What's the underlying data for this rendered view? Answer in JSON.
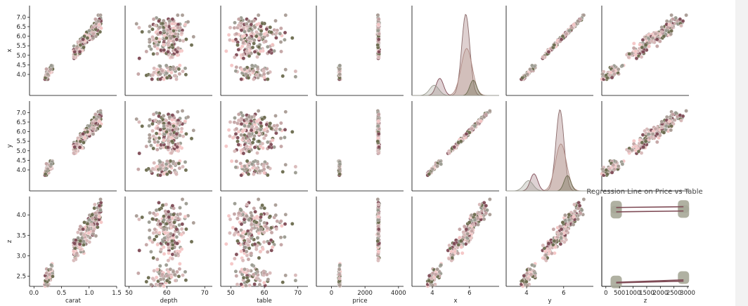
{
  "chart_data": {
    "type": "scatter",
    "kind": "pairplot",
    "row_variables": [
      "x",
      "y",
      "z"
    ],
    "col_variables": [
      "carat",
      "depth",
      "table",
      "price",
      "x",
      "y",
      "z"
    ],
    "axes": {
      "carat": {
        "range": [
          -0.08,
          1.5
        ],
        "ticks": [
          0.0,
          0.5,
          1.0,
          1.5
        ],
        "tick_labels": [
          "0.0",
          "0.5",
          "1.0",
          "1.5"
        ]
      },
      "depth": {
        "range": [
          49,
          72
        ],
        "ticks": [
          50,
          60,
          70
        ],
        "tick_labels": [
          "50",
          "60",
          "70"
        ]
      },
      "table": {
        "range": [
          47,
          73
        ],
        "ticks": [
          50,
          60,
          70
        ],
        "tick_labels": [
          "50",
          "60",
          "70"
        ]
      },
      "price": {
        "range": [
          -900,
          4300
        ],
        "ticks": [
          0,
          2000,
          4000
        ],
        "tick_labels": [
          "0",
          "2000",
          "4000"
        ]
      },
      "x": {
        "range": [
          2.9,
          7.6
        ],
        "ticks": [
          4.0,
          4.5,
          5.0,
          5.5,
          6.0,
          6.5,
          7.0
        ],
        "tick_labels": [
          "4.0",
          "4.5",
          "5.0",
          "5.5",
          "6.0",
          "6.5",
          "7.0"
        ],
        "bottom_ticks": [
          4,
          6
        ],
        "bottom_tick_labels": [
          "4",
          "6"
        ]
      },
      "y": {
        "range": [
          2.9,
          7.6
        ],
        "ticks": [
          4.0,
          4.5,
          5.0,
          5.5,
          6.0,
          6.5,
          7.0
        ],
        "tick_labels": [
          "4.0",
          "4.5",
          "5.0",
          "5.5",
          "6.0",
          "6.5",
          "7.0"
        ],
        "bottom_ticks": [
          4,
          6
        ],
        "bottom_tick_labels": [
          "4",
          "6"
        ]
      },
      "z": {
        "range": [
          2.25,
          4.45
        ],
        "ticks": [
          2.5,
          3.0,
          3.5,
          4.0
        ],
        "tick_labels": [
          "2.5",
          "3.0",
          "3.5",
          "4.0"
        ],
        "bottom_range": [
          -150,
          3050
        ],
        "bottom_ticks": [
          0,
          500,
          1000,
          1500,
          2000,
          2500,
          3000
        ],
        "bottom_tick_labels": [
          "0",
          "500",
          "1000",
          "1500",
          "2000",
          "2500",
          "3000"
        ]
      }
    },
    "hue_colors": [
      "#6b6b4e",
      "#a89b94",
      "#c4a4a4",
      "#f5c6c6",
      "#7e4a55",
      "#9a9a90",
      "#d8b8b8"
    ],
    "diagonal": {
      "type": "kde",
      "ranges": {
        "x": [
          2.9,
          7.6
        ],
        "y": [
          2.9,
          7.6
        ]
      }
    },
    "regression_panel": {
      "title": "Regression Line on Price vs Table",
      "points": [
        {
          "x": 380,
          "y": 57.5
        },
        {
          "x": 380,
          "y": 61.5
        },
        {
          "x": 2850,
          "y": 58
        },
        {
          "x": 2850,
          "y": 62
        },
        {
          "x": 380,
          "y": 1.5
        },
        {
          "x": 2850,
          "y": 5
        }
      ],
      "lines": [
        {
          "x": [
            380,
            2850
          ],
          "y": [
            57.7,
            58.4
          ]
        },
        {
          "x": [
            380,
            2850
          ],
          "y": [
            61.2,
            61.8
          ]
        },
        {
          "x": [
            380,
            2850
          ],
          "y": [
            1.2,
            3.2
          ]
        },
        {
          "x": [
            380,
            2850
          ],
          "y": [
            0.8,
            2.2
          ]
        }
      ],
      "yrange": [
        -2,
        70
      ]
    }
  }
}
